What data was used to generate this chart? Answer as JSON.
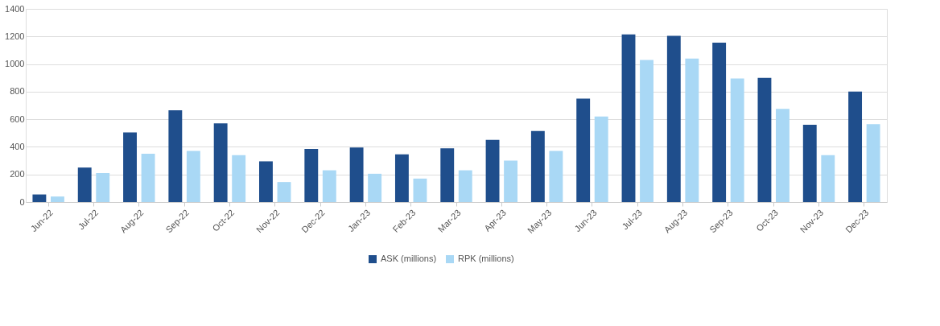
{
  "chart_data": {
    "type": "bar",
    "categories": [
      "Jun-22",
      "Jul-22",
      "Aug-22",
      "Sep-22",
      "Oct-22",
      "Nov-22",
      "Dec-22",
      "Jan-23",
      "Feb-23",
      "Mar-23",
      "Apr-23",
      "May-23",
      "Jun-23",
      "Jul-23",
      "Aug-23",
      "Sep-23",
      "Oct-23",
      "Nov-23",
      "Dec-23"
    ],
    "series": [
      {
        "name": "ASK (millions)",
        "color": "#1f4e8c",
        "values": [
          55,
          250,
          505,
          665,
          570,
          295,
          385,
          395,
          345,
          390,
          450,
          515,
          750,
          1215,
          1205,
          1155,
          900,
          560,
          800
        ]
      },
      {
        "name": "RPK (millions)",
        "color": "#a9d8f5",
        "values": [
          40,
          210,
          350,
          370,
          340,
          145,
          230,
          205,
          170,
          230,
          300,
          370,
          620,
          1030,
          1040,
          895,
          675,
          340,
          565
        ]
      }
    ],
    "ylim": [
      0,
      1400
    ],
    "yticks": [
      0,
      200,
      400,
      600,
      800,
      1000,
      1200,
      1400
    ],
    "grid": "y",
    "legend": "bottom"
  }
}
